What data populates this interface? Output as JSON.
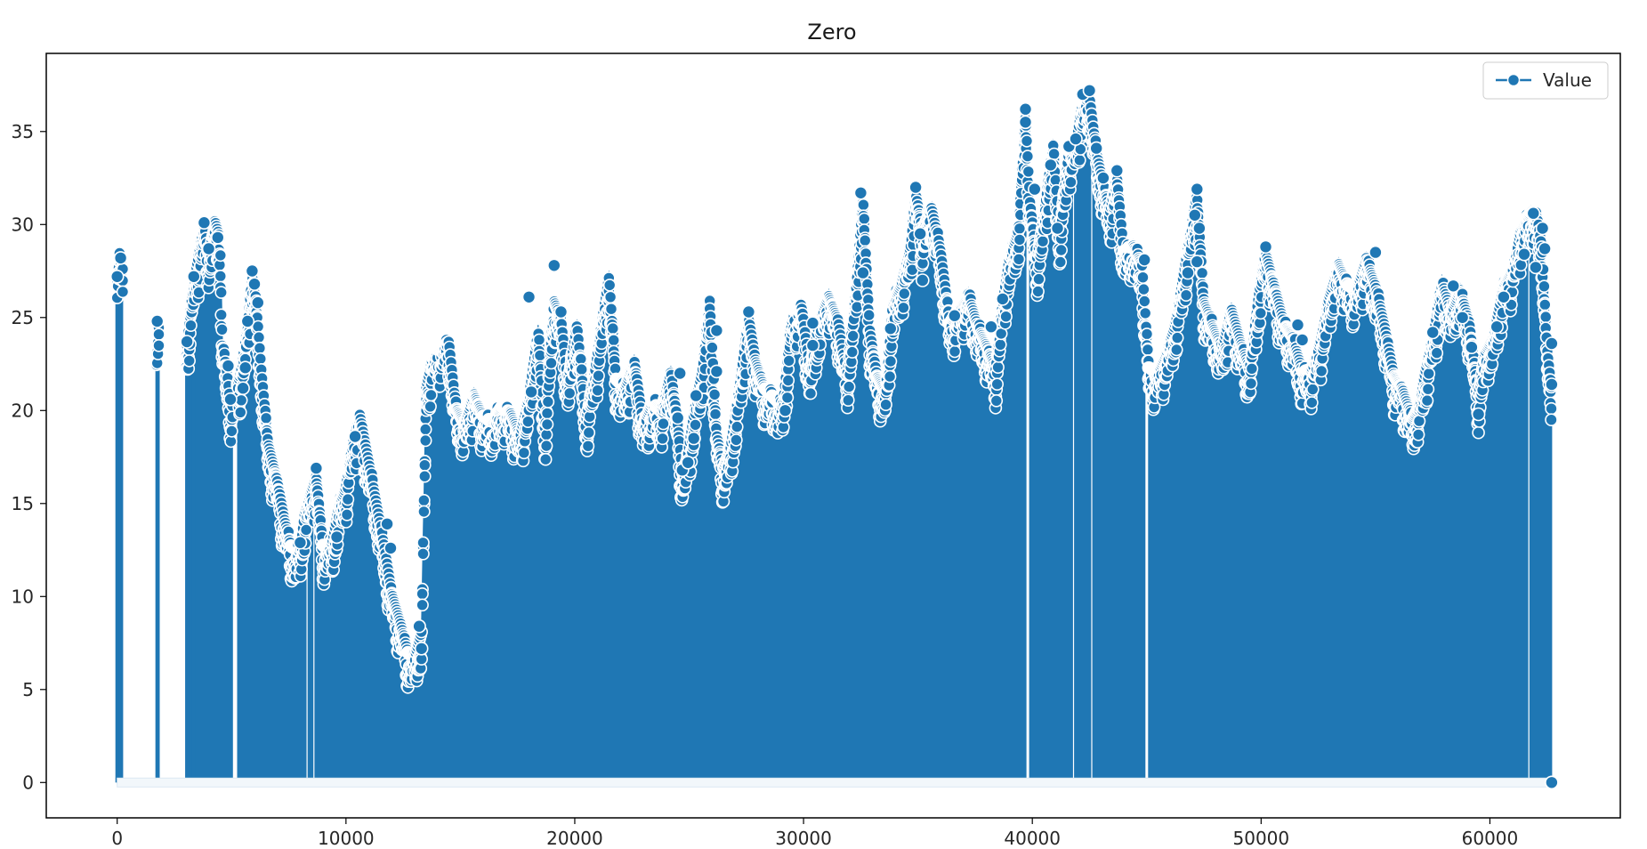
{
  "chart_data": {
    "type": "line",
    "title": "Zero",
    "xlabel": "",
    "ylabel": "",
    "xlim": [
      -3100,
      65700
    ],
    "ylim": [
      -1.9,
      39.2
    ],
    "x_ticks": [
      0,
      10000,
      20000,
      30000,
      40000,
      50000,
      60000
    ],
    "y_ticks": [
      0,
      5,
      10,
      15,
      20,
      25,
      30,
      35
    ],
    "grid": false,
    "legend": {
      "position": "top-right",
      "entries": [
        "Value"
      ]
    },
    "colors": {
      "series": "#1f77b4",
      "marker_edge": "#ffffff",
      "axes": "#000000"
    },
    "series": [
      {
        "name": "Value",
        "marker": "circle",
        "note_zero_drops": "series alternates between the level below and 0 at nearly every step, producing a filled appearance",
        "gaps": [
          [
            250,
            1700
          ],
          [
            1850,
            3000
          ],
          [
            5050,
            5250
          ]
        ],
        "envelope": [
          [
            0,
            27.2
          ],
          [
            100,
            28.8
          ],
          [
            200,
            28.0
          ],
          [
            1750,
            24.8
          ],
          [
            3050,
            23.8
          ],
          [
            3350,
            27.2
          ],
          [
            3800,
            30.2
          ],
          [
            4000,
            28.7
          ],
          [
            4300,
            30.4
          ],
          [
            4500,
            29.5
          ],
          [
            4600,
            23.8
          ],
          [
            4800,
            22.4
          ],
          [
            4950,
            20.6
          ],
          [
            5400,
            22.3
          ],
          [
            5700,
            24.8
          ],
          [
            5900,
            27.5
          ],
          [
            6000,
            26.8
          ],
          [
            6100,
            25.8
          ],
          [
            6300,
            22.5
          ],
          [
            6600,
            18.5
          ],
          [
            7000,
            16.5
          ],
          [
            7300,
            14.5
          ],
          [
            7600,
            13.0
          ],
          [
            8000,
            12.7
          ],
          [
            8200,
            14.8
          ],
          [
            8500,
            16.0
          ],
          [
            8700,
            16.8
          ],
          [
            9000,
            13.0
          ],
          [
            9400,
            13.2
          ],
          [
            9700,
            15.2
          ],
          [
            10000,
            16.2
          ],
          [
            10300,
            18.6
          ],
          [
            10600,
            20.1
          ],
          [
            11000,
            17.5
          ],
          [
            11300,
            15.5
          ],
          [
            11700,
            12.8
          ],
          [
            12000,
            10.5
          ],
          [
            12400,
            8.8
          ],
          [
            12700,
            7.3
          ],
          [
            13000,
            7.0
          ],
          [
            13300,
            8.4
          ],
          [
            13500,
            21.5
          ],
          [
            13800,
            23.2
          ],
          [
            14200,
            23.8
          ],
          [
            14500,
            24.0
          ],
          [
            14800,
            20.5
          ],
          [
            15200,
            19.5
          ],
          [
            15600,
            21.2
          ],
          [
            16000,
            20.0
          ],
          [
            16400,
            19.7
          ],
          [
            16800,
            20.5
          ],
          [
            17200,
            20.2
          ],
          [
            17600,
            18.9
          ],
          [
            18000,
            21.0
          ],
          [
            18400,
            24.6
          ],
          [
            18700,
            19.2
          ],
          [
            19100,
            26.2
          ],
          [
            19400,
            25.2
          ],
          [
            19700,
            21.8
          ],
          [
            20100,
            24.9
          ],
          [
            20500,
            19.8
          ],
          [
            20900,
            22.5
          ],
          [
            21200,
            25.2
          ],
          [
            21500,
            27.5
          ],
          [
            21800,
            22.0
          ],
          [
            22200,
            21.5
          ],
          [
            22600,
            23.0
          ],
          [
            23000,
            19.5
          ],
          [
            23400,
            20.8
          ],
          [
            23800,
            20.2
          ],
          [
            24200,
            22.4
          ],
          [
            24500,
            19.6
          ],
          [
            24700,
            16.9
          ],
          [
            24900,
            17.6
          ],
          [
            25300,
            20.8
          ],
          [
            25600,
            22.6
          ],
          [
            25900,
            26.2
          ],
          [
            26200,
            19.0
          ],
          [
            26500,
            17.2
          ],
          [
            26800,
            18.2
          ],
          [
            27200,
            21.5
          ],
          [
            27600,
            25.3
          ],
          [
            27900,
            23.0
          ],
          [
            28300,
            21.5
          ],
          [
            28700,
            21.0
          ],
          [
            29100,
            20.5
          ],
          [
            29500,
            25.5
          ],
          [
            29900,
            26.0
          ],
          [
            30300,
            22.4
          ],
          [
            30700,
            25.2
          ],
          [
            31100,
            26.5
          ],
          [
            31500,
            25.2
          ],
          [
            31900,
            22.1
          ],
          [
            32300,
            26.8
          ],
          [
            32600,
            31.7
          ],
          [
            32900,
            24.6
          ],
          [
            33200,
            22.2
          ],
          [
            33600,
            21.2
          ],
          [
            33900,
            26.0
          ],
          [
            34300,
            27.2
          ],
          [
            34700,
            29.2
          ],
          [
            34900,
            32.0
          ],
          [
            35200,
            30.0
          ],
          [
            35600,
            31.2
          ],
          [
            36000,
            28.8
          ],
          [
            36400,
            25.0
          ],
          [
            36800,
            25.8
          ],
          [
            37200,
            26.6
          ],
          [
            37600,
            24.9
          ],
          [
            38000,
            23.8
          ],
          [
            38400,
            22.5
          ],
          [
            38700,
            26.0
          ],
          [
            39000,
            28.5
          ],
          [
            39400,
            30.0
          ],
          [
            39700,
            36.2
          ],
          [
            39900,
            31.5
          ],
          [
            40200,
            28.4
          ],
          [
            40500,
            30.6
          ],
          [
            40900,
            34.6
          ],
          [
            41200,
            29.8
          ],
          [
            41600,
            34.2
          ],
          [
            41900,
            34.6
          ],
          [
            42200,
            36.8
          ],
          [
            42500,
            37.2
          ],
          [
            42800,
            34.2
          ],
          [
            43100,
            32.5
          ],
          [
            43400,
            31.0
          ],
          [
            43700,
            32.9
          ],
          [
            44000,
            28.8
          ],
          [
            44400,
            29.2
          ],
          [
            44800,
            28.1
          ],
          [
            45100,
            22.6
          ],
          [
            45500,
            22.3
          ],
          [
            45900,
            23.5
          ],
          [
            46300,
            25.2
          ],
          [
            46600,
            27.5
          ],
          [
            47000,
            30.5
          ],
          [
            47200,
            31.9
          ],
          [
            47500,
            26.2
          ],
          [
            47900,
            24.8
          ],
          [
            48300,
            23.5
          ],
          [
            48700,
            25.8
          ],
          [
            49100,
            24.0
          ],
          [
            49500,
            22.5
          ],
          [
            49900,
            26.5
          ],
          [
            50200,
            28.8
          ],
          [
            50600,
            26.9
          ],
          [
            51000,
            25.0
          ],
          [
            51400,
            24.2
          ],
          [
            51800,
            22.4
          ],
          [
            52200,
            22.5
          ],
          [
            52600,
            24.0
          ],
          [
            53000,
            26.5
          ],
          [
            53400,
            28.2
          ],
          [
            53800,
            27.0
          ],
          [
            54200,
            26.8
          ],
          [
            54600,
            28.5
          ],
          [
            55000,
            27.0
          ],
          [
            55400,
            24.8
          ],
          [
            55800,
            22.2
          ],
          [
            56200,
            21.4
          ],
          [
            56600,
            19.8
          ],
          [
            56900,
            20.5
          ],
          [
            57200,
            22.5
          ],
          [
            57600,
            24.8
          ],
          [
            57900,
            27.3
          ],
          [
            58300,
            25.5
          ],
          [
            58700,
            26.8
          ],
          [
            59100,
            25.0
          ],
          [
            59500,
            21.2
          ],
          [
            59800,
            23.5
          ],
          [
            60200,
            24.5
          ],
          [
            60600,
            27.0
          ],
          [
            61000,
            28.0
          ],
          [
            61400,
            30.2
          ],
          [
            61800,
            31.0
          ],
          [
            62100,
            30.5
          ],
          [
            62300,
            28.8
          ],
          [
            62500,
            23.6
          ],
          [
            62700,
            21.4
          ]
        ],
        "highlighted_points": [
          [
            0,
            27.2
          ],
          [
            150,
            28.2
          ],
          [
            1750,
            24.8
          ],
          [
            3050,
            23.7
          ],
          [
            3350,
            27.2
          ],
          [
            3800,
            30.1
          ],
          [
            4000,
            28.7
          ],
          [
            4400,
            29.3
          ],
          [
            4850,
            22.4
          ],
          [
            4950,
            20.6
          ],
          [
            5500,
            21.2
          ],
          [
            5600,
            22.3
          ],
          [
            5700,
            24.8
          ],
          [
            5900,
            27.5
          ],
          [
            6000,
            26.8
          ],
          [
            6150,
            25.8
          ],
          [
            8000,
            12.9
          ],
          [
            8700,
            16.9
          ],
          [
            9600,
            13.2
          ],
          [
            10400,
            18.6
          ],
          [
            11800,
            13.9
          ],
          [
            11950,
            12.6
          ],
          [
            13300,
            7.2
          ],
          [
            13200,
            8.4
          ],
          [
            18000,
            26.1
          ],
          [
            18100,
            21.0
          ],
          [
            19100,
            27.8
          ],
          [
            19400,
            25.3
          ],
          [
            24600,
            22.0
          ],
          [
            24500,
            19.6
          ],
          [
            24700,
            16.8
          ],
          [
            24950,
            17.2
          ],
          [
            25200,
            18.5
          ],
          [
            25300,
            20.8
          ],
          [
            26200,
            24.3
          ],
          [
            26200,
            22.1
          ],
          [
            27600,
            25.3
          ],
          [
            29200,
            20.0
          ],
          [
            30400,
            24.7
          ],
          [
            30400,
            23.5
          ],
          [
            32500,
            31.7
          ],
          [
            32600,
            27.4
          ],
          [
            33800,
            24.4
          ],
          [
            34900,
            32.0
          ],
          [
            35100,
            29.5
          ],
          [
            35200,
            27.0
          ],
          [
            36600,
            25.1
          ],
          [
            38200,
            24.5
          ],
          [
            38700,
            26.0
          ],
          [
            39700,
            36.2
          ],
          [
            39700,
            35.5
          ],
          [
            40100,
            31.9
          ],
          [
            40800,
            33.2
          ],
          [
            41100,
            29.8
          ],
          [
            41600,
            34.2
          ],
          [
            41900,
            34.6
          ],
          [
            42200,
            37.0
          ],
          [
            42500,
            37.2
          ],
          [
            42800,
            34.1
          ],
          [
            43100,
            32.5
          ],
          [
            43700,
            32.9
          ],
          [
            44900,
            28.1
          ],
          [
            46800,
            27.4
          ],
          [
            47100,
            30.5
          ],
          [
            47200,
            31.9
          ],
          [
            47300,
            29.8
          ],
          [
            47200,
            28.0
          ],
          [
            50200,
            28.8
          ],
          [
            51600,
            24.6
          ],
          [
            51800,
            23.8
          ],
          [
            55000,
            28.5
          ],
          [
            57500,
            24.2
          ],
          [
            58400,
            26.7
          ],
          [
            58800,
            25.0
          ],
          [
            59200,
            23.4
          ],
          [
            59500,
            19.8
          ],
          [
            60300,
            24.5
          ],
          [
            60600,
            26.1
          ],
          [
            61500,
            28.4
          ],
          [
            61900,
            30.6
          ],
          [
            62000,
            27.7
          ],
          [
            62300,
            29.8
          ],
          [
            62400,
            28.7
          ],
          [
            62700,
            23.6
          ],
          [
            62700,
            21.4
          ],
          [
            62700,
            0.0
          ]
        ]
      }
    ]
  }
}
